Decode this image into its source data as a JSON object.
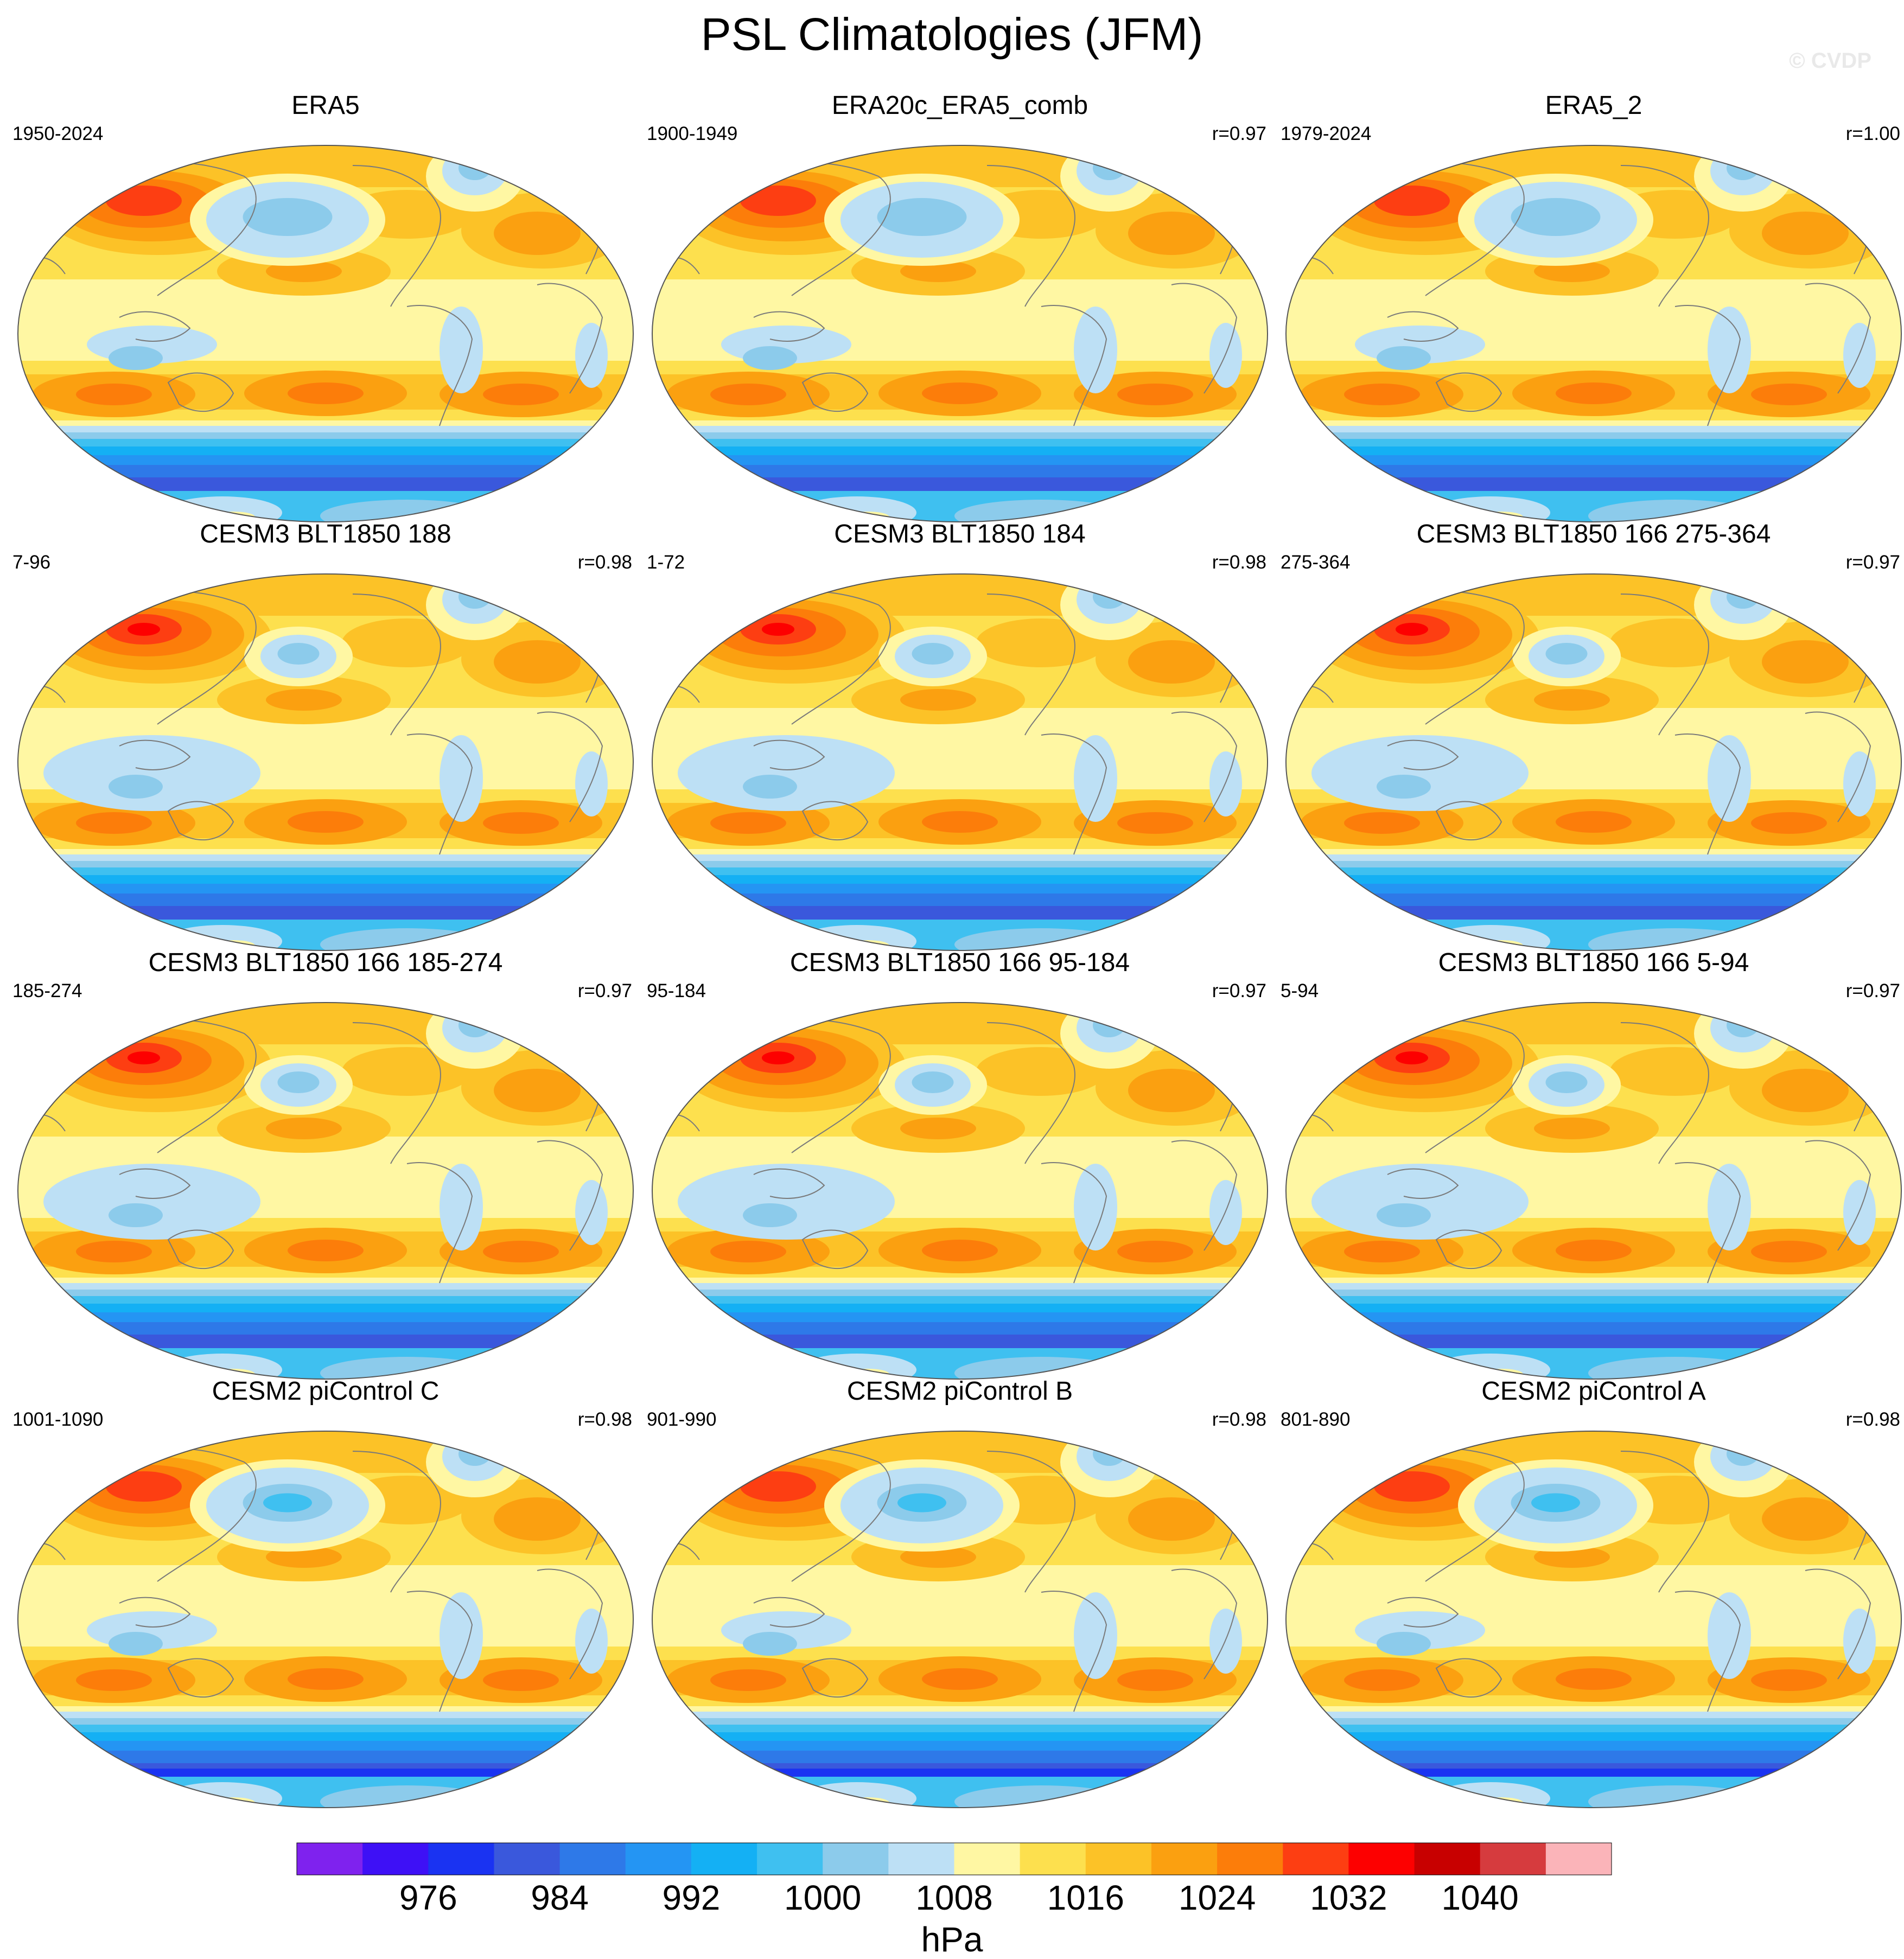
{
  "title": "PSL Climatologies (JFM)",
  "watermark": "© CVDP",
  "chart_data": {
    "type": "heatmap",
    "projection": "global map (Robinson-like)",
    "panels": [
      {
        "title": "ERA5",
        "period": "1950-2024",
        "r": ""
      },
      {
        "title": "ERA20c_ERA5_comb",
        "period": "1900-1949",
        "r": "r=0.97"
      },
      {
        "title": "ERA5_2",
        "period": "1979-2024",
        "r": "r=1.00"
      },
      {
        "title": "CESM3 BLT1850 188",
        "period": "7-96",
        "r": "r=0.98"
      },
      {
        "title": "CESM3 BLT1850 184",
        "period": "1-72",
        "r": "r=0.98"
      },
      {
        "title": "CESM3 BLT1850 166 275-364",
        "period": "275-364",
        "r": "r=0.97"
      },
      {
        "title": "CESM3 BLT1850 166 185-274",
        "period": "185-274",
        "r": "r=0.97"
      },
      {
        "title": "CESM3 BLT1850 166 95-184",
        "period": "95-184",
        "r": "r=0.97"
      },
      {
        "title": "CESM3 BLT1850 166 5-94",
        "period": "5-94",
        "r": "r=0.97"
      },
      {
        "title": "CESM2 piControl C",
        "period": "1001-1090",
        "r": "r=0.98"
      },
      {
        "title": "CESM2 piControl B",
        "period": "901-990",
        "r": "r=0.98"
      },
      {
        "title": "CESM2 piControl A",
        "period": "801-890",
        "r": "r=0.98"
      }
    ],
    "colorbar": {
      "units": "hPa",
      "levels": [
        972,
        976,
        980,
        984,
        988,
        992,
        996,
        1000,
        1004,
        1008,
        1012,
        1016,
        1020,
        1024,
        1028,
        1032,
        1036,
        1040,
        1044
      ],
      "tick_labels": [
        "976",
        "984",
        "992",
        "1000",
        "1008",
        "1016",
        "1024",
        "1032",
        "1040"
      ],
      "colors": [
        "#7f22ee",
        "#3e10f6",
        "#1a33f2",
        "#3a58dc",
        "#2e79e8",
        "#2495f3",
        "#14b0f4",
        "#3fc0f0",
        "#8ccbeb",
        "#bde0f5",
        "#fff7a3",
        "#fde04e",
        "#fcc227",
        "#fba010",
        "#fc7d0a",
        "#fd3e12",
        "#fd0000",
        "#c80000",
        "#d63b3e",
        "#fbb4b9"
      ]
    }
  }
}
